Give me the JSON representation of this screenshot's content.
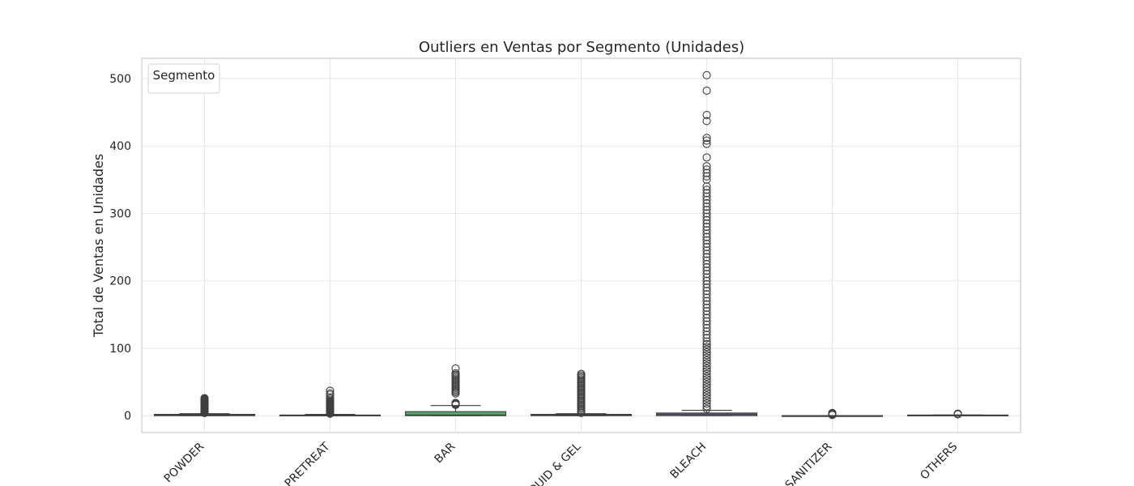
{
  "chart_data": {
    "type": "box",
    "title": "Outliers en Ventas por Segmento (Unidades)",
    "xlabel": "",
    "ylabel": "Total de Ventas en Unidades",
    "ylim": [
      -25,
      530
    ],
    "yticks": [
      0,
      100,
      200,
      300,
      400,
      500
    ],
    "grid": true,
    "legend": {
      "title": "Segmento",
      "placement": "top-left"
    },
    "categories": [
      "POWDER",
      "PRETREAT",
      "BAR",
      "LIQUID & GEL",
      "BLEACH",
      "SANITIZER",
      "OTHERS"
    ],
    "boxes": [
      {
        "category": "POWDER",
        "color": "#4c72b0",
        "whislo": 0,
        "q1": 0,
        "med": 1,
        "q3": 2,
        "whishi": 3,
        "fliers": [
          4,
          5,
          6,
          7,
          8,
          9,
          10,
          11,
          12,
          13,
          14,
          15,
          16,
          17,
          18,
          19,
          20,
          21,
          22,
          23,
          24,
          25,
          26
        ]
      },
      {
        "category": "PRETREAT",
        "color": "#dd8452",
        "whislo": 0,
        "q1": 0,
        "med": 0,
        "q3": 1,
        "whishi": 2,
        "fliers": [
          3,
          4,
          5,
          6,
          7,
          8,
          9,
          10,
          11,
          12,
          13,
          14,
          15,
          16,
          17,
          18,
          19,
          20,
          21,
          22,
          25,
          27,
          31,
          33,
          37
        ]
      },
      {
        "category": "BAR",
        "color": "#55a868",
        "whislo": 0,
        "q1": 0,
        "med": 1,
        "q3": 6,
        "whishi": 15,
        "fliers": [
          16,
          17,
          18,
          19,
          33,
          35,
          37,
          39,
          41,
          43,
          45,
          47,
          49,
          51,
          53,
          55,
          57,
          59,
          61,
          63,
          70
        ]
      },
      {
        "category": "LIQUID & GEL",
        "color": "#c44e52",
        "whislo": 0,
        "q1": 0,
        "med": 1,
        "q3": 2,
        "whishi": 3,
        "fliers": [
          4,
          6,
          8,
          10,
          12,
          14,
          16,
          18,
          20,
          22,
          24,
          26,
          28,
          30,
          32,
          34,
          36,
          38,
          40,
          42,
          44,
          46,
          48,
          50,
          52,
          54,
          56,
          58,
          60,
          62
        ]
      },
      {
        "category": "BLEACH",
        "color": "#8172b3",
        "whislo": 0,
        "q1": 0,
        "med": 2,
        "q3": 4,
        "whishi": 8,
        "fliers": [
          10,
          14,
          18,
          22,
          26,
          30,
          34,
          38,
          42,
          46,
          50,
          54,
          58,
          62,
          66,
          70,
          74,
          78,
          82,
          86,
          90,
          94,
          98,
          102,
          106,
          110,
          115,
          120,
          125,
          130,
          135,
          140,
          145,
          150,
          155,
          160,
          165,
          170,
          175,
          180,
          185,
          190,
          195,
          200,
          205,
          210,
          215,
          220,
          225,
          230,
          235,
          240,
          245,
          250,
          255,
          260,
          265,
          270,
          275,
          280,
          285,
          290,
          295,
          300,
          305,
          310,
          315,
          320,
          325,
          330,
          335,
          340,
          350,
          355,
          360,
          365,
          370,
          383,
          403,
          408,
          412,
          437,
          446,
          482,
          505
        ]
      },
      {
        "category": "SANITIZER",
        "color": "#937860",
        "whislo": 0,
        "q1": 0,
        "med": 0,
        "q3": 0,
        "whishi": 0,
        "fliers": [
          1,
          2,
          3,
          4
        ]
      },
      {
        "category": "OTHERS",
        "color": "#da8bc3",
        "whislo": 0,
        "q1": 0,
        "med": 0,
        "q3": 1,
        "whishi": 1,
        "fliers": [
          2,
          3
        ]
      }
    ]
  }
}
